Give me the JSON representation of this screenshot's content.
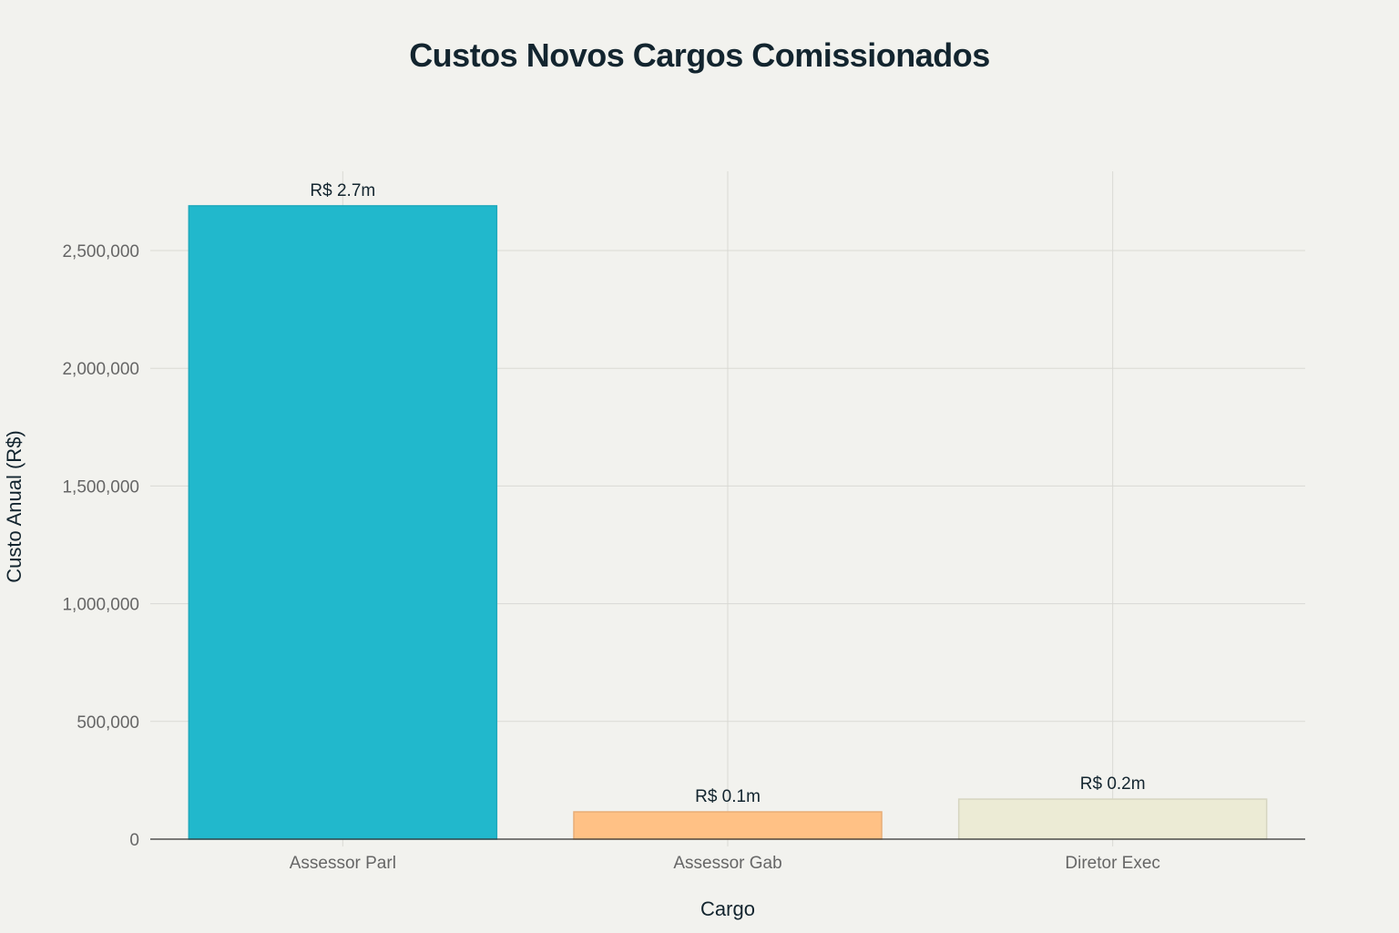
{
  "chart": {
    "title": "Custos Novos Cargos Comissionados",
    "xlabel": "Cargo",
    "ylabel": "Custo Anual (R$)",
    "yticks": [
      "0",
      "500,000",
      "1,000,000",
      "1,500,000",
      "2,000,000",
      "2,500,000"
    ],
    "colors": [
      "#21b8cc",
      "#ffc185",
      "#ecebd5"
    ],
    "background": "#f2f2ee"
  },
  "chart_data": {
    "type": "bar",
    "title": "Custos Novos Cargos Comissionados",
    "xlabel": "Cargo",
    "ylabel": "Custo Anual (R$)",
    "categories": [
      "Assessor Parl",
      "Assessor Gab",
      "Diretor Exec"
    ],
    "values": [
      2690000,
      116000,
      170000
    ],
    "data_labels": [
      "R$ 2.7m",
      "R$ 0.1m",
      "R$ 0.2m"
    ],
    "colors": [
      "#21b8cc",
      "#ffc185",
      "#ecebd5"
    ],
    "ylim": [
      0,
      2830000
    ],
    "yticks": [
      0,
      500000,
      1000000,
      1500000,
      2000000,
      2500000
    ],
    "grid": true,
    "legend": "none"
  }
}
